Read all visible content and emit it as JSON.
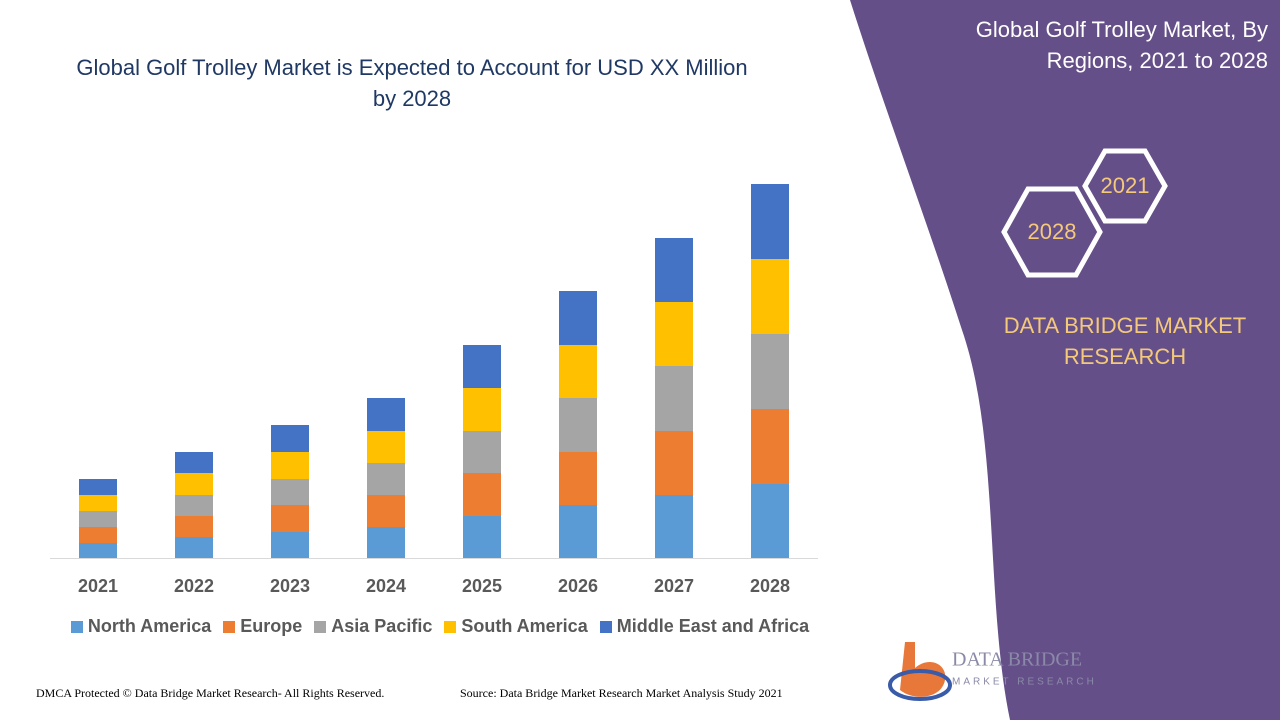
{
  "chart_data": {
    "type": "bar",
    "stacked": true,
    "title": "Global Golf Trolley Market is Expected to Account for USD XX Million by 2028",
    "categories": [
      "2021",
      "2022",
      "2023",
      "2024",
      "2025",
      "2026",
      "2027",
      "2028"
    ],
    "series": [
      {
        "name": "North America",
        "color": "#5b9bd5",
        "values": [
          15,
          21,
          26,
          31,
          42,
          53,
          63,
          74
        ]
      },
      {
        "name": "Europe",
        "color": "#ed7d31",
        "values": [
          16,
          21,
          27,
          32,
          43,
          53,
          64,
          75
        ]
      },
      {
        "name": "Asia Pacific",
        "color": "#a5a5a5",
        "values": [
          16,
          21,
          26,
          32,
          42,
          54,
          65,
          75
        ]
      },
      {
        "name": "South America",
        "color": "#ffc000",
        "values": [
          16,
          22,
          27,
          32,
          43,
          53,
          64,
          75
        ]
      },
      {
        "name": "Middle East and Africa",
        "color": "#4472c4",
        "values": [
          16,
          21,
          27,
          33,
          43,
          54,
          64,
          75
        ]
      }
    ]
  },
  "side_panel": {
    "title": "Global Golf Trolley Market, By Regions, 2021 to 2028",
    "year_start": "2021",
    "year_end": "2028",
    "brand": "DATA BRIDGE MARKET RESEARCH"
  },
  "logo": {
    "name": "DATA BRIDGE",
    "tagline": "MARKET RESEARCH"
  },
  "footer": {
    "copyright": "DMCA Protected © Data Bridge Market Research- All Rights Reserved.",
    "source": "Source: Data Bridge Market Research Market Analysis Study 2021"
  }
}
